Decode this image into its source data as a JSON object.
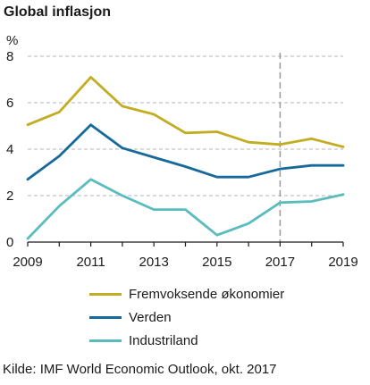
{
  "chart_data": {
    "type": "line",
    "title": "Global inflasjon",
    "ylabel": "%",
    "xlabel": "",
    "x": [
      2009,
      2010,
      2011,
      2012,
      2013,
      2014,
      2015,
      2016,
      2017,
      2018,
      2019
    ],
    "xticks": [
      "2009",
      "2011",
      "2013",
      "2015",
      "2017",
      "2019"
    ],
    "yticks": [
      "0",
      "2",
      "4",
      "6",
      "8"
    ],
    "xlim": [
      2009,
      2019
    ],
    "ylim": [
      0,
      8
    ],
    "grid": "horizontal dashed",
    "forecast_divider_x": 2017,
    "legend_position": "bottom",
    "series": [
      {
        "name": "Fremvoksende økonomier",
        "color": "#c2ad22",
        "values": [
          5.05,
          5.6,
          7.1,
          5.85,
          5.5,
          4.7,
          4.75,
          4.3,
          4.2,
          4.45,
          4.1
        ]
      },
      {
        "name": "Verden",
        "color": "#17699b",
        "values": [
          2.7,
          3.7,
          5.05,
          4.05,
          3.65,
          3.25,
          2.8,
          2.8,
          3.15,
          3.3,
          3.3
        ]
      },
      {
        "name": "Industriland",
        "color": "#5bbcbd",
        "values": [
          0.15,
          1.55,
          2.7,
          2.0,
          1.4,
          1.4,
          0.3,
          0.8,
          1.7,
          1.75,
          2.05
        ]
      }
    ],
    "source": "Kilde: IMF World Economic Outlook, okt. 2017"
  }
}
